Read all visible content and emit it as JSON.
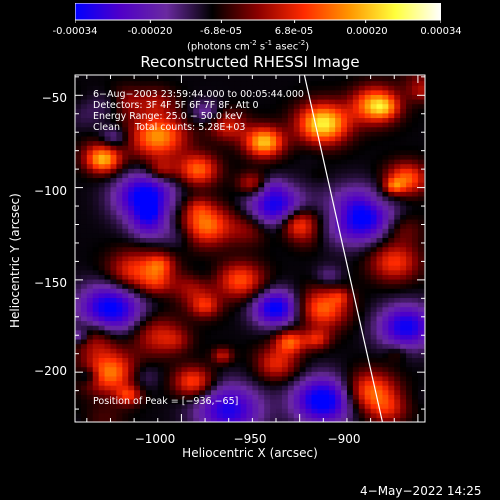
{
  "colorbar": {
    "ticks": [
      "-0.00034",
      "-0.00020",
      "-6.8e-05",
      "6.8e-05",
      "0.00020",
      "0.00034"
    ],
    "tick_values": [
      -0.00034,
      -0.0002,
      -6.8e-05,
      6.8e-05,
      0.0002,
      0.00034
    ],
    "range": [
      -0.00034,
      0.00034
    ],
    "units_main": "(photons cm",
    "units_exp1": "-2",
    "units_mid": " s",
    "units_exp2": "-1",
    "units_end": " asec",
    "units_exp3": "-2",
    "units_close": ")",
    "colors": [
      "#0000ff",
      "#5000c8",
      "#6a2aa0",
      "#000000",
      "#8c0000",
      "#ff2a00",
      "#ff9600",
      "#ffff3c",
      "#ffffff"
    ]
  },
  "chart_data": {
    "type": "heatmap",
    "title": "Reconstructed RHESSI Image",
    "xlabel": "Heliocentric X (arcsec)",
    "ylabel": "Heliocentric Y (arcsec)",
    "xlim": [
      -1045,
      -897
    ],
    "ylim": [
      -227,
      -39
    ],
    "xticks": [
      -1000,
      -950,
      -900
    ],
    "xtick_labels": [
      "−1000",
      "−950",
      "−900"
    ],
    "yticks": [
      -50,
      -100,
      -150,
      -200
    ],
    "ytick_labels": [
      "−50",
      "−100",
      "−150",
      "−200"
    ],
    "limb_line": [
      [
        -948,
        -39
      ],
      [
        -915,
        -227
      ]
    ],
    "peak": [
      -936,
      -65
    ],
    "hot_spots": [
      {
        "x": -1033,
        "y": -85,
        "v": 0.0002
      },
      {
        "x": -1010,
        "y": -72,
        "v": 0.00026
      },
      {
        "x": -993,
        "y": -90,
        "v": 0.00022
      },
      {
        "x": -965,
        "y": -75,
        "v": 0.0003
      },
      {
        "x": -940,
        "y": -65,
        "v": 0.00034
      },
      {
        "x": -918,
        "y": -55,
        "v": 0.00028
      },
      {
        "x": -905,
        "y": -95,
        "v": 0.00022
      },
      {
        "x": -990,
        "y": -120,
        "v": 0.00024
      },
      {
        "x": -1020,
        "y": -145,
        "v": 0.00018
      },
      {
        "x": -975,
        "y": -150,
        "v": 0.0002
      },
      {
        "x": -940,
        "y": -165,
        "v": 0.00022
      },
      {
        "x": -910,
        "y": -140,
        "v": 0.00018
      },
      {
        "x": -1030,
        "y": -200,
        "v": 0.00024
      },
      {
        "x": -995,
        "y": -205,
        "v": 0.0002
      },
      {
        "x": -960,
        "y": -195,
        "v": 0.00016
      },
      {
        "x": -920,
        "y": -210,
        "v": 0.00022
      },
      {
        "x": -1010,
        "y": -180,
        "v": 0.00014
      },
      {
        "x": -950,
        "y": -120,
        "v": 0.00012
      }
    ],
    "cold_spots": [
      {
        "x": -1015,
        "y": -105,
        "v": -0.00028
      },
      {
        "x": -960,
        "y": -110,
        "v": -0.00024
      },
      {
        "x": -925,
        "y": -115,
        "v": -0.0003
      },
      {
        "x": -1030,
        "y": -165,
        "v": -0.00026
      },
      {
        "x": -960,
        "y": -165,
        "v": -0.00026
      },
      {
        "x": -905,
        "y": -175,
        "v": -0.00024
      },
      {
        "x": -980,
        "y": -220,
        "v": -0.00022
      },
      {
        "x": -940,
        "y": -215,
        "v": -0.00028
      }
    ]
  },
  "info": {
    "line1": "6−Aug−2003 23:59:44.000 to 00:05:44.000",
    "line2": "Detectors: 3F 4F 5F 6F 7F 8F, Att 0",
    "line3": "Energy Range: 25.0 − 50.0 keV",
    "line4": "Clean     Total counts: 5.28E+03",
    "peak": "Position of Peak = [−936,−65]"
  },
  "footer": "4−May−2022 14:25"
}
